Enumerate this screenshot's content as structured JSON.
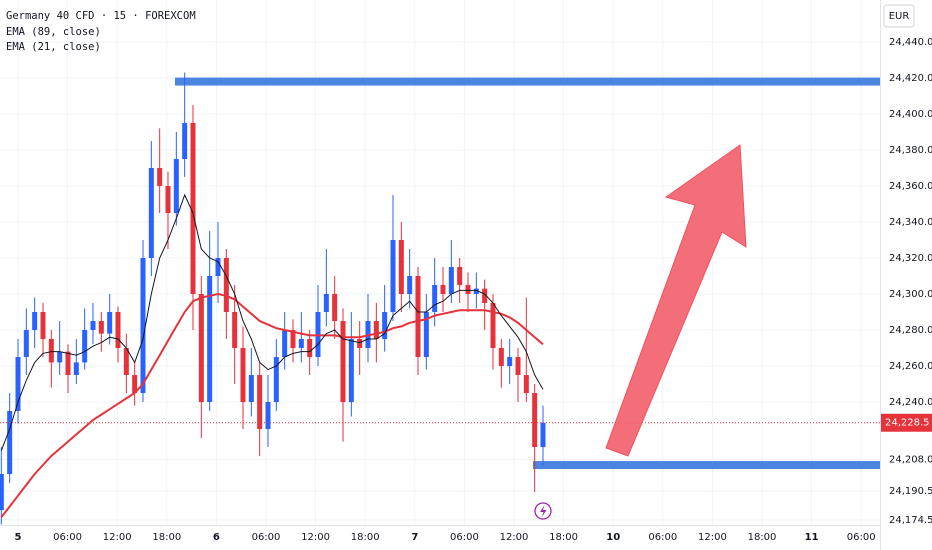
{
  "chart_data": {
    "type": "candlestick",
    "title": "Germany 40 CFD · 15 · FOREXCOM",
    "indicators": [
      "EMA (89, close)",
      "EMA (21, close)"
    ],
    "currency": "EUR",
    "up_color": "#2962ff",
    "down_color": "#e5323b",
    "ylim": [
      24171.7,
      24463.3
    ],
    "yticks": [
      {
        "value": 24440,
        "label": "24,440.0"
      },
      {
        "value": 24420,
        "label": "24,420.0"
      },
      {
        "value": 24400,
        "label": "24,400.0"
      },
      {
        "value": 24380,
        "label": "24,380.0"
      },
      {
        "value": 24360,
        "label": "24,360.0"
      },
      {
        "value": 24340,
        "label": "24,340.0"
      },
      {
        "value": 24320,
        "label": "24,320.0"
      },
      {
        "value": 24300,
        "label": "24,300.0"
      },
      {
        "value": 24280,
        "label": "24,280.0"
      },
      {
        "value": 24260,
        "label": "24,260.0"
      },
      {
        "value": 24240,
        "label": "24,240.0"
      },
      {
        "value": 24208,
        "label": "24,208.0"
      },
      {
        "value": 24190.5,
        "label": "24,190.5"
      },
      {
        "value": 24174.5,
        "label": "24,174.5"
      }
    ],
    "x_labels": [
      "5",
      "06:00",
      "12:00",
      "18:00",
      "6",
      "06:00",
      "12:00",
      "18:00",
      "7",
      "06:00",
      "12:00",
      "18:00",
      "10",
      "06:00",
      "12:00",
      "18:00",
      "11",
      "06:00"
    ],
    "current_price": {
      "value": 24228.5,
      "label": "24,228.5"
    },
    "levels": [
      24418,
      24205
    ],
    "ohlc": [
      [
        24180,
        24215,
        24172,
        24200
      ],
      [
        24200,
        24245,
        24195,
        24235
      ],
      [
        24235,
        24275,
        24228,
        24265
      ],
      [
        24265,
        24292,
        24255,
        24280
      ],
      [
        24280,
        24298,
        24270,
        24290
      ],
      [
        24290,
        24295,
        24265,
        24275
      ],
      [
        24275,
        24280,
        24248,
        24262
      ],
      [
        24262,
        24285,
        24255,
        24268
      ],
      [
        24268,
        24272,
        24245,
        24255
      ],
      [
        24255,
        24275,
        24250,
        24262
      ],
      [
        24262,
        24292,
        24258,
        24280
      ],
      [
        24280,
        24295,
        24272,
        24285
      ],
      [
        24285,
        24290,
        24268,
        24278
      ],
      [
        24278,
        24300,
        24272,
        24290
      ],
      [
        24290,
        24293,
        24262,
        24270
      ],
      [
        24270,
        24278,
        24245,
        24255
      ],
      [
        24255,
        24262,
        24238,
        24245
      ],
      [
        24245,
        24330,
        24240,
        24320
      ],
      [
        24320,
        24385,
        24310,
        24370
      ],
      [
        24370,
        24392,
        24345,
        24360
      ],
      [
        24360,
        24368,
        24325,
        24345
      ],
      [
        24345,
        24390,
        24338,
        24375
      ],
      [
        24375,
        24423,
        24365,
        24395
      ],
      [
        24395,
        24405,
        24280,
        24300
      ],
      [
        24300,
        24310,
        24220,
        24240
      ],
      [
        24240,
        24335,
        24235,
        24310
      ],
      [
        24310,
        24340,
        24295,
        24320
      ],
      [
        24320,
        24325,
        24275,
        24290
      ],
      [
        24290,
        24305,
        24250,
        24270
      ],
      [
        24270,
        24282,
        24225,
        24240
      ],
      [
        24240,
        24270,
        24232,
        24255
      ],
      [
        24255,
        24262,
        24210,
        24225
      ],
      [
        24225,
        24255,
        24215,
        24240
      ],
      [
        24240,
        24275,
        24235,
        24265
      ],
      [
        24265,
        24290,
        24258,
        24280
      ],
      [
        24280,
        24286,
        24262,
        24270
      ],
      [
        24270,
        24290,
        24262,
        24275
      ],
      [
        24275,
        24280,
        24255,
        24265
      ],
      [
        24265,
        24305,
        24260,
        24290
      ],
      [
        24290,
        24325,
        24282,
        24300
      ],
      [
        24300,
        24310,
        24275,
        24285
      ],
      [
        24285,
        24292,
        24218,
        24240
      ],
      [
        24240,
        24290,
        24232,
        24275
      ],
      [
        24275,
        24285,
        24255,
        24270
      ],
      [
        24270,
        24300,
        24262,
        24285
      ],
      [
        24285,
        24295,
        24262,
        24275
      ],
      [
        24275,
        24305,
        24268,
        24290
      ],
      [
        24290,
        24355,
        24285,
        24330
      ],
      [
        24330,
        24340,
        24290,
        24300
      ],
      [
        24300,
        24325,
        24292,
        24310
      ],
      [
        24310,
        24315,
        24255,
        24265
      ],
      [
        24265,
        24300,
        24258,
        24290
      ],
      [
        24290,
        24320,
        24282,
        24305
      ],
      [
        24305,
        24315,
        24290,
        24300
      ],
      [
        24300,
        24330,
        24295,
        24315
      ],
      [
        24315,
        24320,
        24295,
        24305
      ],
      [
        24305,
        24312,
        24290,
        24300
      ],
      [
        24300,
        24312,
        24292,
        24303
      ],
      [
        24303,
        24308,
        24280,
        24295
      ],
      [
        24295,
        24300,
        24258,
        24270
      ],
      [
        24270,
        24275,
        24248,
        24260
      ],
      [
        24260,
        24275,
        24250,
        24265
      ],
      [
        24265,
        24270,
        24240,
        24255
      ],
      [
        24255,
        24298,
        24240,
        24245
      ],
      [
        24245,
        24250,
        24190,
        24215
      ],
      [
        24215,
        24238,
        24205,
        24228.5
      ]
    ],
    "series": [
      {
        "name": "EMA (89, close)",
        "color": "#e5323b",
        "values": [
          24176,
          24182,
          24188,
          24194,
          24200,
          24205,
          24210,
          24214,
          24218,
          24222,
          24226,
          24230,
          24233,
          24236,
          24239,
          24242,
          24245,
          24250,
          24258,
          24266,
          24274,
          24282,
          24290,
          24296,
          24298,
          24299,
          24300,
          24299,
          24297,
          24293,
          24289,
          24285,
          24283,
          24281,
          24280,
          24279,
          24278,
          24277,
          24277,
          24277,
          24277,
          24276,
          24276,
          24276,
          24277,
          24278,
          24279,
          24281,
          24282,
          24284,
          24285,
          24286,
          24288,
          24289,
          24290,
          24291,
          24291,
          24291,
          24291,
          24290,
          24289,
          24287,
          24284,
          24280,
          24276,
          24272
        ]
      },
      {
        "name": "EMA (21, close)",
        "color": "#131722",
        "values": [
          24213,
          24225,
          24240,
          24252,
          24262,
          24267,
          24268,
          24268,
          24267,
          24266,
          24268,
          24271,
          24273,
          24276,
          24275,
          24270,
          24262,
          24275,
          24300,
          24320,
          24330,
          24342,
          24355,
          24345,
          24325,
          24320,
          24318,
          24310,
          24300,
          24285,
          24275,
          24262,
          24258,
          24260,
          24265,
          24267,
          24268,
          24268,
          24272,
          24278,
          24280,
          24275,
          24274,
          24273,
          24275,
          24275,
          24278,
          24288,
          24292,
          24296,
          24290,
          24290,
          24294,
          24296,
          24300,
          24302,
          24302,
          24302,
          24300,
          24295,
          24288,
          24282,
          24276,
          24268,
          24255,
          24247
        ]
      }
    ]
  }
}
